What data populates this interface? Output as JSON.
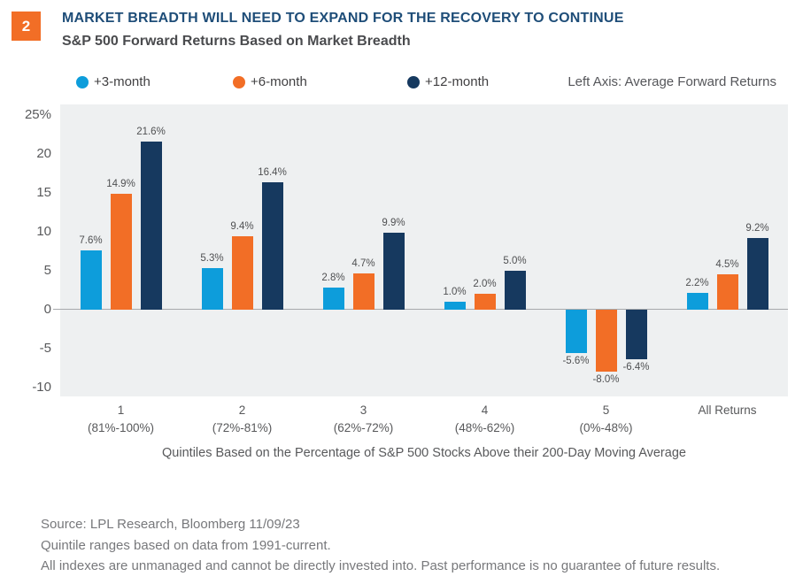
{
  "header": {
    "badge": "2",
    "title": "MARKET BREADTH WILL NEED TO EXPAND FOR THE RECOVERY TO CONTINUE",
    "subtitle": "S&P 500 Forward Returns Based on Market Breadth"
  },
  "colors": {
    "accent_orange": "#F26E26",
    "accent_blue": "#0D9DDB",
    "accent_navy": "#16395F",
    "title_navy": "#1E4D78",
    "plot_bg": "#EEF0F1",
    "axis_gray": "#58595B"
  },
  "chart_data": {
    "type": "bar",
    "title": "MARKET BREADTH WILL NEED TO EXPAND FOR THE RECOVERY TO CONTINUE",
    "subtitle": "S&P 500 Forward Returns Based on Market Breadth",
    "legend_note": "Left Axis: Average Forward Returns",
    "categories": [
      {
        "label": "1",
        "sublabel": "(81%-100%)"
      },
      {
        "label": "2",
        "sublabel": "(72%-81%)"
      },
      {
        "label": "3",
        "sublabel": "(62%-72%)"
      },
      {
        "label": "4",
        "sublabel": "(48%-62%)"
      },
      {
        "label": "5",
        "sublabel": "(0%-48%)"
      },
      {
        "label": "All Returns",
        "sublabel": ""
      }
    ],
    "series": [
      {
        "name": "+3-month",
        "color": "#0D9DDB",
        "values": [
          7.6,
          5.3,
          2.8,
          1.0,
          -5.6,
          2.2
        ]
      },
      {
        "name": "+6-month",
        "color": "#F26E26",
        "values": [
          14.9,
          9.4,
          4.7,
          2.0,
          -8.0,
          4.5
        ]
      },
      {
        "name": "+12-month",
        "color": "#16395F",
        "values": [
          21.6,
          16.4,
          9.9,
          5.0,
          -6.4,
          9.2
        ]
      }
    ],
    "y_ticks": [
      {
        "value": 25,
        "label": "25%"
      },
      {
        "value": 20,
        "label": "20"
      },
      {
        "value": 15,
        "label": "15"
      },
      {
        "value": 10,
        "label": "10"
      },
      {
        "value": 5,
        "label": "5"
      },
      {
        "value": 0,
        "label": "0"
      },
      {
        "value": -5,
        "label": "-5"
      },
      {
        "value": -10,
        "label": "-10"
      }
    ],
    "ylim": [
      -11.1,
      26.4
    ],
    "grid": false,
    "legend_position": "top",
    "xlabel": "Quintiles Based on the Percentage of S&P 500 Stocks Above their 200-Day Moving Average",
    "ylabel": "Average Forward Returns (%)"
  },
  "footer": {
    "lines": [
      "Source: LPL Research, Bloomberg  11/09/23",
      "Quintile ranges based on data from 1991-current.",
      "All indexes are unmanaged and cannot be directly invested into. Past performance is no guarantee of future results."
    ]
  }
}
